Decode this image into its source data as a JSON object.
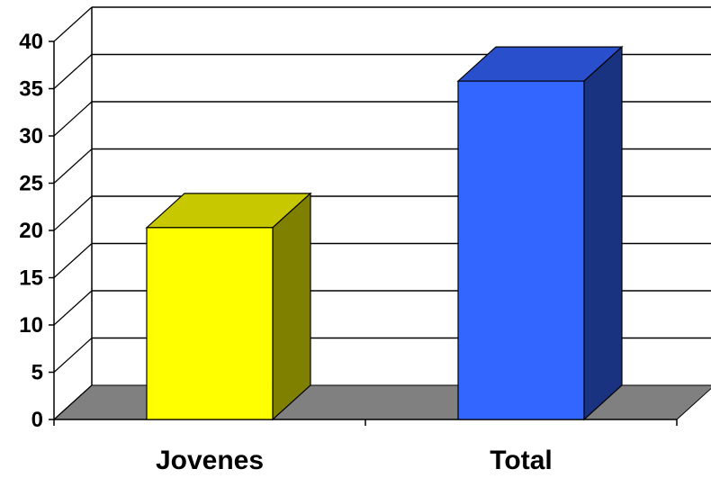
{
  "chart_data": {
    "type": "bar",
    "categories": [
      "Jovenes",
      "Total"
    ],
    "values": [
      20.3,
      35.8
    ],
    "ylim": [
      0,
      40
    ],
    "yticks": [
      0,
      5,
      10,
      15,
      20,
      25,
      30,
      35,
      40
    ],
    "yticks_labels": [
      "0",
      "5",
      "10",
      "15",
      "20",
      "25",
      "30",
      "35",
      "40"
    ],
    "grid": true,
    "three_d": true,
    "legend": "none",
    "colors": {
      "Jovenes": {
        "front": "#ffff00",
        "top": "#c8c800",
        "side": "#808000"
      },
      "Total": {
        "front": "#3366ff",
        "top": "#2a4fcc",
        "side": "#1a3380"
      },
      "floor": "#808080",
      "gridline": "#000000"
    }
  }
}
